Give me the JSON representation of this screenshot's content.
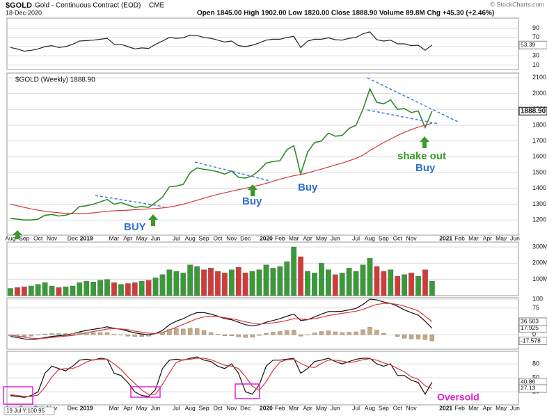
{
  "header": {
    "symbol": "$GOLD",
    "description": "Gold - Continuous Contract (EOD)",
    "exchange": "CME",
    "date": "18-Dec-2020",
    "quote": "Open 1845.00  High 1902.00  Low 1820.00  Close 1888.90  Volume 89.8M  Chg +45.30 (+2.46%)",
    "credit": "© StockCharts.com"
  },
  "chart_data": [
    {
      "type": "line",
      "ylim": [
        0,
        112
      ],
      "yticks": [
        90,
        70,
        50,
        30,
        10
      ],
      "grid": true,
      "series": [
        {
          "color": "#222222",
          "tag": true,
          "values": [
            48,
            45,
            40,
            42,
            45,
            50,
            52,
            48,
            50,
            55,
            62,
            63,
            64,
            66,
            68,
            55,
            55,
            50,
            45,
            47,
            46,
            55,
            62,
            70,
            68,
            69,
            75,
            74,
            70,
            68,
            64,
            60,
            62,
            52,
            50,
            53,
            58,
            64,
            66,
            66,
            70,
            72,
            48,
            62,
            66,
            66,
            69,
            65,
            64,
            68,
            70,
            78,
            82,
            65,
            62,
            64,
            56,
            56,
            52,
            53,
            42,
            53.39
          ]
        }
      ]
    },
    {
      "type": "line",
      "title": "$GOLD (Weekly) 1888.90",
      "ylim": [
        1104,
        2130
      ],
      "yticks": [
        1200,
        1300,
        1400,
        1500,
        1600,
        1700,
        1800,
        1900,
        2000,
        2100
      ],
      "grid": true,
      "categories": [
        "Aug",
        null,
        "Sep",
        null,
        "Oct",
        null,
        "Nov",
        null,
        null,
        "Dec",
        null,
        "2019",
        null,
        null,
        null,
        "Mar",
        null,
        "Apr",
        null,
        "May",
        null,
        "Jun",
        null,
        null,
        "Jul",
        null,
        "Aug",
        null,
        "Sep",
        null,
        "Oct",
        null,
        "Nov",
        null,
        "Dec",
        null,
        null,
        "2020",
        null,
        "Feb",
        null,
        "Mar",
        null,
        "Apr",
        null,
        "May",
        null,
        "Jun",
        null,
        null,
        "Jul",
        null,
        "Aug",
        null,
        "Sep",
        null,
        "Oct",
        null,
        "Nov",
        null,
        null,
        null,
        null,
        "2021",
        null,
        "Feb",
        null,
        "Mar",
        null,
        "Apr",
        null,
        "May",
        null,
        "Jun"
      ],
      "series": [
        {
          "color": "#2e8b2e",
          "tag": true,
          "tag_label": "1888.90",
          "values": [
            1210,
            1205,
            1200,
            1200,
            1205,
            1230,
            1235,
            1225,
            1230,
            1245,
            1285,
            1290,
            1300,
            1315,
            1330,
            1300,
            1310,
            1295,
            1280,
            1285,
            1280,
            1310,
            1345,
            1410,
            1415,
            1425,
            1500,
            1530,
            1520,
            1515,
            1505,
            1490,
            1510,
            1470,
            1465,
            1480,
            1515,
            1560,
            1570,
            1575,
            1645,
            1670,
            1490,
            1630,
            1690,
            1700,
            1750,
            1730,
            1735,
            1780,
            1800,
            1900,
            2030,
            1945,
            1935,
            1960,
            1900,
            1905,
            1880,
            1890,
            1785,
            1888.9,
            null,
            null,
            null,
            null,
            null,
            null,
            null,
            null,
            null,
            null,
            null,
            null
          ]
        },
        {
          "color": "#d9363e",
          "values": [
            1300,
            1290,
            1280,
            1270,
            1262,
            1255,
            1250,
            1245,
            1242,
            1240,
            1240,
            1242,
            1245,
            1250,
            1255,
            1258,
            1260,
            1262,
            1265,
            1268,
            1270,
            1272,
            1276,
            1282,
            1290,
            1300,
            1312,
            1325,
            1338,
            1350,
            1362,
            1372,
            1382,
            1392,
            1400,
            1410,
            1420,
            1432,
            1445,
            1458,
            1470,
            1480,
            1488,
            1498,
            1510,
            1522,
            1535,
            1548,
            1560,
            1575,
            1590,
            1610,
            1640,
            1665,
            1690,
            1712,
            1735,
            1755,
            1772,
            1788,
            1800,
            1812,
            null,
            null,
            null,
            null,
            null,
            null,
            null,
            null,
            null,
            null,
            null,
            null
          ]
        }
      ],
      "annotations": [
        "BUY",
        "Buy",
        "Buy",
        "shake out",
        "Buy"
      ]
    },
    {
      "type": "bar",
      "ylim": [
        0,
        330
      ],
      "yticks": [
        {
          "value": 100,
          "label": "100M"
        },
        {
          "value": 200,
          "label": "200M"
        },
        {
          "value": 300,
          "label": "300M"
        }
      ],
      "grid": true,
      "up_color": "#3a9a3a",
      "down_color": "#d23b3b",
      "values": [
        45,
        50,
        55,
        60,
        70,
        80,
        60,
        50,
        55,
        60,
        80,
        90,
        85,
        95,
        100,
        80,
        70,
        75,
        80,
        90,
        95,
        110,
        130,
        160,
        150,
        140,
        190,
        180,
        160,
        170,
        150,
        140,
        160,
        175,
        140,
        150,
        160,
        190,
        170,
        180,
        210,
        300,
        240,
        150,
        140,
        200,
        160,
        130,
        140,
        170,
        150,
        190,
        230,
        180,
        150,
        160,
        120,
        130,
        140,
        120,
        160,
        89.8
      ]
    },
    {
      "type": "line",
      "ylim": [
        -41,
        104
      ],
      "yticks": [
        100,
        75,
        0
      ],
      "grid": true,
      "series": [
        {
          "color": "#111111",
          "tag": true,
          "values": [
            -5,
            -8,
            -12,
            -14,
            -12,
            -8,
            -5,
            -3,
            -1,
            2,
            8,
            12,
            15,
            18,
            22,
            18,
            15,
            10,
            5,
            2,
            0,
            3,
            12,
            28,
            38,
            45,
            55,
            62,
            62,
            58,
            52,
            45,
            42,
            35,
            28,
            25,
            28,
            35,
            40,
            45,
            52,
            58,
            40,
            42,
            50,
            58,
            65,
            65,
            66,
            70,
            74,
            85,
            100,
            98,
            92,
            88,
            80,
            70,
            62,
            55,
            38,
            17.925
          ]
        },
        {
          "color": "#d9363e",
          "tag": true,
          "values": [
            -2,
            -4,
            -7,
            -10,
            -11,
            -10,
            -8,
            -6,
            -4,
            -2,
            1,
            5,
            9,
            12,
            16,
            17,
            16,
            14,
            10,
            7,
            4,
            3,
            6,
            13,
            21,
            29,
            37,
            45,
            50,
            52,
            51,
            48,
            45,
            41,
            36,
            32,
            30,
            31,
            33,
            36,
            40,
            45,
            44,
            43,
            45,
            49,
            54,
            57,
            60,
            63,
            66,
            71,
            79,
            85,
            88,
            88,
            85,
            80,
            74,
            67,
            52,
            36.503
          ]
        },
        {
          "type": "bar",
          "color": "#c8a882",
          "tag": true,
          "values": [
            -3,
            -4,
            -5,
            -4,
            -1,
            2,
            3,
            3,
            3,
            4,
            7,
            7,
            6,
            6,
            6,
            1,
            -1,
            -4,
            -5,
            -5,
            -4,
            0,
            6,
            15,
            17,
            16,
            18,
            17,
            12,
            6,
            1,
            -3,
            -3,
            -6,
            -8,
            -7,
            -2,
            4,
            7,
            9,
            12,
            13,
            -4,
            -1,
            5,
            9,
            11,
            8,
            6,
            7,
            8,
            14,
            21,
            13,
            4,
            0,
            -5,
            -10,
            -12,
            -12,
            -14,
            -17.578
          ]
        }
      ]
    },
    {
      "type": "line",
      "ylim": [
        -8,
        107
      ],
      "yticks": [
        80,
        50,
        20
      ],
      "grid": true,
      "categories": [
        "Aug",
        null,
        "Sep",
        null,
        "Oct",
        null,
        "Nov",
        null,
        null,
        "Dec",
        null,
        "2019",
        null,
        null,
        null,
        "Mar",
        null,
        "Apr",
        null,
        "May",
        null,
        "Jun",
        null,
        null,
        "Jul",
        null,
        "Aug",
        null,
        "Sep",
        null,
        "Oct",
        null,
        "Nov",
        null,
        "Dec",
        null,
        null,
        "2020",
        null,
        "Feb",
        null,
        "Mar",
        null,
        "Apr",
        null,
        "May",
        null,
        "Jun",
        null,
        null,
        "Jul",
        null,
        "Aug",
        null,
        "Sep",
        null,
        "Oct",
        null,
        "Nov",
        null,
        null,
        null,
        null,
        "2021",
        null,
        "Feb",
        null,
        "Mar",
        null,
        "Apr",
        null,
        "May",
        null,
        "Jun"
      ],
      "series": [
        {
          "color": "#111111",
          "tag": true,
          "values": [
            12,
            10,
            8,
            12,
            20,
            60,
            75,
            70,
            65,
            75,
            88,
            90,
            88,
            92,
            90,
            60,
            55,
            40,
            20,
            12,
            10,
            25,
            70,
            88,
            90,
            88,
            92,
            95,
            88,
            85,
            75,
            70,
            80,
            60,
            20,
            15,
            35,
            75,
            88,
            88,
            90,
            92,
            60,
            70,
            85,
            88,
            92,
            85,
            80,
            85,
            90,
            92,
            92,
            80,
            75,
            80,
            55,
            55,
            45,
            40,
            15,
            40.86,
            null,
            null,
            null,
            null,
            null,
            null,
            null,
            null,
            null,
            null,
            null,
            null
          ]
        },
        {
          "color": "#d9363e",
          "tag": true,
          "values": [
            14,
            12,
            10,
            10,
            13,
            30,
            52,
            68,
            70,
            70,
            76,
            84,
            89,
            90,
            90,
            80,
            68,
            52,
            38,
            24,
            14,
            15,
            36,
            61,
            83,
            89,
            90,
            92,
            92,
            89,
            83,
            77,
            75,
            70,
            53,
            32,
            23,
            42,
            66,
            84,
            89,
            90,
            81,
            74,
            72,
            81,
            88,
            88,
            86,
            83,
            85,
            89,
            91,
            88,
            82,
            78,
            70,
            63,
            52,
            47,
            33,
            27.13,
            null,
            null,
            null,
            null,
            null,
            null,
            null,
            null,
            null,
            null,
            null,
            null
          ]
        }
      ],
      "annotations": [
        "Oversold"
      ],
      "cursor_label": "19 Jul Y:100.95"
    }
  ]
}
